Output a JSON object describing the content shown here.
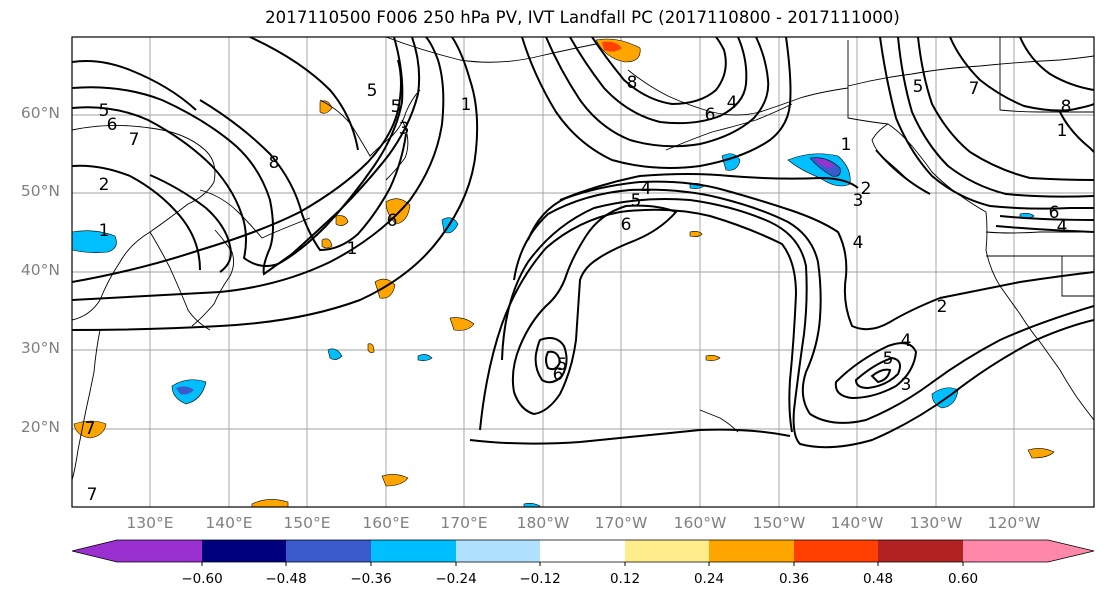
{
  "title": "2017110500 F006 250 hPa PV, IVT Landfall PC (2017110800 - 2017111000)",
  "lat_labels": [
    "60°N",
    "50°N",
    "40°N",
    "30°N",
    "20°N"
  ],
  "lon_labels": [
    "130°E",
    "140°E",
    "150°E",
    "160°E",
    "170°E",
    "180°W",
    "170°W",
    "160°W",
    "150°W",
    "140°W",
    "130°W",
    "120°W"
  ],
  "colorbar": {
    "tick_labels": [
      "−0.60",
      "−0.48",
      "−0.36",
      "−0.24",
      "−0.12",
      "0.12",
      "0.24",
      "0.36",
      "0.48",
      "0.60"
    ],
    "levels": [
      -0.6,
      -0.48,
      -0.36,
      -0.24,
      -0.12,
      0.12,
      0.24,
      0.36,
      0.48,
      0.6
    ],
    "colors": [
      "#9b30d0",
      "#00007f",
      "#3a5bcc",
      "#00bfff",
      "#b0e2ff",
      "#ffffff",
      "#ffec8b",
      "#ffa500",
      "#ff4000",
      "#b22222",
      "#ff88aa"
    ]
  },
  "contour_labels": [
    "1",
    "2",
    "3",
    "4",
    "5",
    "6",
    "7",
    "8"
  ],
  "contour_color": "#000000",
  "grid_color": "#a0a0a0"
}
